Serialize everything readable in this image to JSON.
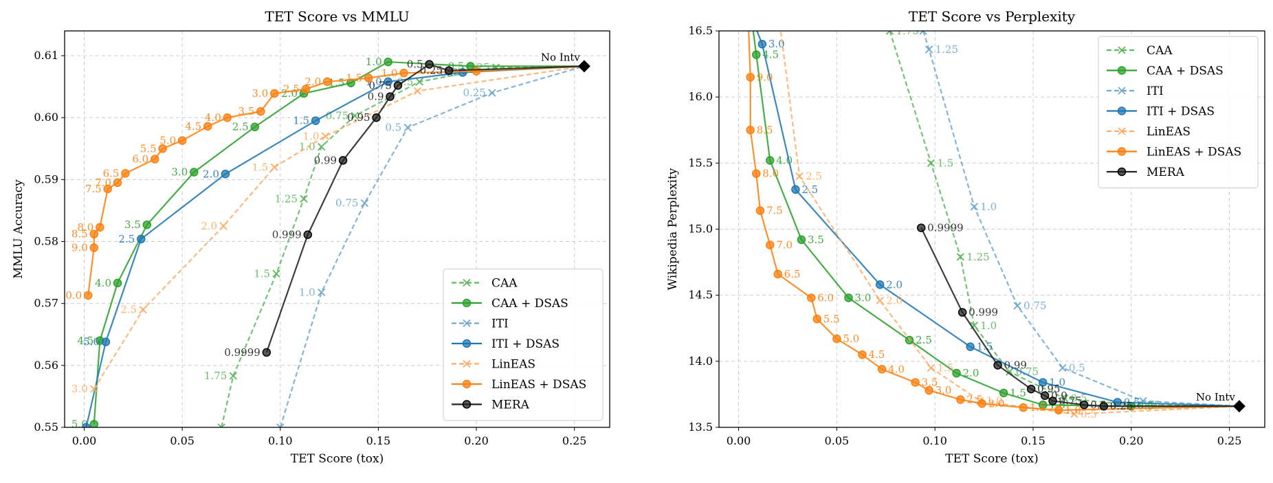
{
  "chart_data": [
    {
      "type": "line",
      "title": "TET Score vs MMLU",
      "xlabel": "TET Score (tox)",
      "ylabel": "MMLU Accuracy",
      "xlim": [
        -0.01,
        0.268
      ],
      "ylim": [
        0.55,
        0.614
      ],
      "xticks": [
        "0.00",
        "0.05",
        "0.10",
        "0.15",
        "0.20",
        "0.25"
      ],
      "xtick_values": [
        0,
        0.05,
        0.1,
        0.15,
        0.2,
        0.25
      ],
      "yticks": [
        "0.55",
        "0.56",
        "0.57",
        "0.58",
        "0.59",
        "0.60",
        "0.61"
      ],
      "ytick_values": [
        0.55,
        0.56,
        0.57,
        0.58,
        0.59,
        0.6,
        0.61
      ],
      "grid": true,
      "legend_position": "bottom-right",
      "endpoint": {
        "label": "No Intv",
        "x": 0.255,
        "y": 0.6083
      },
      "series": [
        {
          "name": "CAA",
          "color": "#5cb85c",
          "dashed": true,
          "marker": "x",
          "points": [
            {
              "x": 0.07,
              "y": 0.55,
              "l": ""
            },
            {
              "x": 0.076,
              "y": 0.5583,
              "l": "1.75"
            },
            {
              "x": 0.098,
              "y": 0.5748,
              "l": "1.5"
            },
            {
              "x": 0.112,
              "y": 0.5869,
              "l": "1.25"
            },
            {
              "x": 0.121,
              "y": 0.5953,
              "l": "1.0"
            },
            {
              "x": 0.138,
              "y": 0.6003,
              "l": "0.75"
            },
            {
              "x": 0.171,
              "y": 0.6058,
              "l": "0.5"
            },
            {
              "x": 0.21,
              "y": 0.6081,
              "l": "0.25"
            },
            {
              "x": 0.255,
              "y": 0.6083,
              "l": ""
            }
          ]
        },
        {
          "name": "CAA + DSAS",
          "color": "#2ca02c",
          "dashed": false,
          "marker": "o",
          "points": [
            {
              "x": 0.005,
              "y": 0.5505,
              "l": "5.0"
            },
            {
              "x": 0.008,
              "y": 0.564,
              "l": "4.5"
            },
            {
              "x": 0.017,
              "y": 0.5733,
              "l": "4.0"
            },
            {
              "x": 0.032,
              "y": 0.5827,
              "l": "3.5"
            },
            {
              "x": 0.056,
              "y": 0.5912,
              "l": "3.0"
            },
            {
              "x": 0.087,
              "y": 0.5985,
              "l": "2.5"
            },
            {
              "x": 0.112,
              "y": 0.6039,
              "l": "2.0"
            },
            {
              "x": 0.136,
              "y": 0.6056,
              "l": "1.5"
            },
            {
              "x": 0.155,
              "y": 0.609,
              "l": "1.0"
            },
            {
              "x": 0.197,
              "y": 0.6083,
              "l": "0.5"
            },
            {
              "x": 0.255,
              "y": 0.6083,
              "l": ""
            }
          ]
        },
        {
          "name": "ITI",
          "color": "#6fa8d0",
          "dashed": true,
          "marker": "x",
          "points": [
            {
              "x": 0.1,
              "y": 0.55,
              "l": ""
            },
            {
              "x": 0.121,
              "y": 0.5718,
              "l": "1.0"
            },
            {
              "x": 0.143,
              "y": 0.5862,
              "l": "0.75"
            },
            {
              "x": 0.165,
              "y": 0.5984,
              "l": "0.5"
            },
            {
              "x": 0.208,
              "y": 0.604,
              "l": "0.25"
            },
            {
              "x": 0.255,
              "y": 0.6083,
              "l": ""
            }
          ]
        },
        {
          "name": "ITI + DSAS",
          "color": "#1f77b4",
          "dashed": false,
          "marker": "o",
          "points": [
            {
              "x": 0.001,
              "y": 0.55,
              "l": ""
            },
            {
              "x": 0.011,
              "y": 0.5638,
              "l": "5.0"
            },
            {
              "x": 0.029,
              "y": 0.5804,
              "l": "2.5"
            },
            {
              "x": 0.072,
              "y": 0.5909,
              "l": "2.0"
            },
            {
              "x": 0.118,
              "y": 0.5995,
              "l": "1.5"
            },
            {
              "x": 0.155,
              "y": 0.6058,
              "l": "1.0"
            },
            {
              "x": 0.193,
              "y": 0.6073,
              "l": "0.5"
            },
            {
              "x": 0.255,
              "y": 0.6083,
              "l": ""
            }
          ]
        },
        {
          "name": "LinEAS",
          "color": "#ffab66",
          "dashed": true,
          "marker": "x",
          "points": [
            {
              "x": 0.005,
              "y": 0.5562,
              "l": "3.0"
            },
            {
              "x": 0.03,
              "y": 0.569,
              "l": "2.5"
            },
            {
              "x": 0.071,
              "y": 0.5825,
              "l": "2.0"
            },
            {
              "x": 0.097,
              "y": 0.592,
              "l": "1.5"
            },
            {
              "x": 0.123,
              "y": 0.597,
              "l": "1.0"
            },
            {
              "x": 0.17,
              "y": 0.6043,
              "l": ""
            },
            {
              "x": 0.255,
              "y": 0.6083,
              "l": ""
            }
          ]
        },
        {
          "name": "LinEAS + DSAS",
          "color": "#ff7f0e",
          "dashed": false,
          "marker": "o",
          "points": [
            {
              "x": 0.002,
              "y": 0.5713,
              "l": "0.0"
            },
            {
              "x": 0.005,
              "y": 0.579,
              "l": "9.0"
            },
            {
              "x": 0.005,
              "y": 0.5812,
              "l": "8.5"
            },
            {
              "x": 0.008,
              "y": 0.5823,
              "l": "8.0"
            },
            {
              "x": 0.012,
              "y": 0.5885,
              "l": "7.5"
            },
            {
              "x": 0.017,
              "y": 0.5895,
              "l": "7.0"
            },
            {
              "x": 0.021,
              "y": 0.591,
              "l": "6.5"
            },
            {
              "x": 0.036,
              "y": 0.5933,
              "l": "6.0"
            },
            {
              "x": 0.04,
              "y": 0.595,
              "l": "5.5"
            },
            {
              "x": 0.05,
              "y": 0.5963,
              "l": "5.0"
            },
            {
              "x": 0.063,
              "y": 0.5986,
              "l": "4.5"
            },
            {
              "x": 0.073,
              "y": 0.6,
              "l": "4.0"
            },
            {
              "x": 0.09,
              "y": 0.601,
              "l": "3.5"
            },
            {
              "x": 0.097,
              "y": 0.6039,
              "l": "3.0"
            },
            {
              "x": 0.113,
              "y": 0.6046,
              "l": "2.5"
            },
            {
              "x": 0.124,
              "y": 0.6058,
              "l": "2.0"
            },
            {
              "x": 0.145,
              "y": 0.6064,
              "l": "1.5"
            },
            {
              "x": 0.163,
              "y": 0.6072,
              "l": "1.0"
            },
            {
              "x": 0.2,
              "y": 0.6075,
              "l": ""
            },
            {
              "x": 0.255,
              "y": 0.6083,
              "l": ""
            }
          ]
        },
        {
          "name": "MERA",
          "color": "#222222",
          "dashed": false,
          "marker": "o",
          "points": [
            {
              "x": 0.093,
              "y": 0.5621,
              "l": "0.9999"
            },
            {
              "x": 0.114,
              "y": 0.5811,
              "l": "0.999"
            },
            {
              "x": 0.132,
              "y": 0.5931,
              "l": "0.99"
            },
            {
              "x": 0.149,
              "y": 0.6,
              "l": "0.95"
            },
            {
              "x": 0.156,
              "y": 0.6034,
              "l": "0.9"
            },
            {
              "x": 0.16,
              "y": 0.6052,
              "l": "0.75"
            },
            {
              "x": 0.176,
              "y": 0.6086,
              "l": "0.5"
            },
            {
              "x": 0.186,
              "y": 0.6076,
              "l": "0.25"
            },
            {
              "x": 0.255,
              "y": 0.6083,
              "l": ""
            }
          ]
        }
      ]
    },
    {
      "type": "line",
      "title": "TET Score vs Perplexity",
      "xlabel": "TET Score (tox)",
      "ylabel": "Wikipedia Perplexity",
      "xlim": [
        -0.01,
        0.268
      ],
      "ylim": [
        13.5,
        16.5
      ],
      "xticks": [
        "0.00",
        "0.05",
        "0.10",
        "0.15",
        "0.20",
        "0.25"
      ],
      "xtick_values": [
        0,
        0.05,
        0.1,
        0.15,
        0.2,
        0.25
      ],
      "yticks": [
        "13.5",
        "14.0",
        "14.5",
        "15.0",
        "15.5",
        "16.0",
        "16.5"
      ],
      "ytick_values": [
        13.5,
        14.0,
        14.5,
        15.0,
        15.5,
        16.0,
        16.5
      ],
      "grid": true,
      "legend_position": "top-right",
      "endpoint": {
        "label": "No Intv",
        "x": 0.255,
        "y": 13.66
      },
      "series": [
        {
          "name": "CAA",
          "color": "#5cb85c",
          "dashed": true,
          "marker": "x",
          "points": [
            {
              "x": 0.077,
              "y": 16.5,
              "l": "1.75"
            },
            {
              "x": 0.098,
              "y": 15.5,
              "l": "1.5"
            },
            {
              "x": 0.113,
              "y": 14.79,
              "l": "1.25"
            },
            {
              "x": 0.12,
              "y": 14.27,
              "l": "1.0"
            },
            {
              "x": 0.138,
              "y": 13.92,
              "l": "0.75"
            },
            {
              "x": 0.166,
              "y": 13.72,
              "l": "0.5"
            },
            {
              "x": 0.2,
              "y": 13.67,
              "l": "0.25"
            },
            {
              "x": 0.255,
              "y": 13.66,
              "l": ""
            }
          ]
        },
        {
          "name": "CAA + DSAS",
          "color": "#2ca02c",
          "dashed": false,
          "marker": "o",
          "points": [
            {
              "x": 0.007,
              "y": 16.55,
              "l": ""
            },
            {
              "x": 0.009,
              "y": 16.32,
              "l": "4.5"
            },
            {
              "x": 0.016,
              "y": 15.52,
              "l": "4.0"
            },
            {
              "x": 0.032,
              "y": 14.92,
              "l": "3.5"
            },
            {
              "x": 0.056,
              "y": 14.48,
              "l": "3.0"
            },
            {
              "x": 0.087,
              "y": 14.16,
              "l": "2.5"
            },
            {
              "x": 0.111,
              "y": 13.91,
              "l": "2.0"
            },
            {
              "x": 0.135,
              "y": 13.76,
              "l": "1.5"
            },
            {
              "x": 0.155,
              "y": 13.67,
              "l": "1.0"
            },
            {
              "x": 0.2,
              "y": 13.66,
              "l": "0.5"
            },
            {
              "x": 0.255,
              "y": 13.66,
              "l": ""
            }
          ]
        },
        {
          "name": "ITI",
          "color": "#6fa8d0",
          "dashed": true,
          "marker": "x",
          "points": [
            {
              "x": 0.094,
              "y": 16.5,
              "l": ""
            },
            {
              "x": 0.097,
              "y": 16.36,
              "l": "1.25"
            },
            {
              "x": 0.12,
              "y": 15.17,
              "l": "1.0"
            },
            {
              "x": 0.142,
              "y": 14.42,
              "l": "0.75"
            },
            {
              "x": 0.165,
              "y": 13.95,
              "l": "0.5"
            },
            {
              "x": 0.206,
              "y": 13.7,
              "l": ""
            },
            {
              "x": 0.255,
              "y": 13.66,
              "l": ""
            }
          ]
        },
        {
          "name": "ITI + DSAS",
          "color": "#1f77b4",
          "dashed": false,
          "marker": "o",
          "points": [
            {
              "x": 0.008,
              "y": 16.55,
              "l": ""
            },
            {
              "x": 0.012,
              "y": 16.4,
              "l": "3.0"
            },
            {
              "x": 0.029,
              "y": 15.3,
              "l": "2.5"
            },
            {
              "x": 0.072,
              "y": 14.58,
              "l": "2.0"
            },
            {
              "x": 0.118,
              "y": 14.11,
              "l": "1.5"
            },
            {
              "x": 0.155,
              "y": 13.84,
              "l": "1.0"
            },
            {
              "x": 0.193,
              "y": 13.69,
              "l": "0.5"
            },
            {
              "x": 0.255,
              "y": 13.66,
              "l": ""
            }
          ]
        },
        {
          "name": "LinEAS",
          "color": "#ffab66",
          "dashed": true,
          "marker": "x",
          "points": [
            {
              "x": 0.021,
              "y": 16.55,
              "l": ""
            },
            {
              "x": 0.031,
              "y": 15.4,
              "l": "2.5"
            },
            {
              "x": 0.072,
              "y": 14.46,
              "l": "2.0"
            },
            {
              "x": 0.098,
              "y": 13.95,
              "l": "1.5"
            },
            {
              "x": 0.123,
              "y": 13.7,
              "l": "1.0"
            },
            {
              "x": 0.171,
              "y": 13.6,
              "l": "0.5"
            },
            {
              "x": 0.255,
              "y": 13.66,
              "l": ""
            }
          ]
        },
        {
          "name": "LinEAS + DSAS",
          "color": "#ff7f0e",
          "dashed": false,
          "marker": "o",
          "points": [
            {
              "x": 0.005,
              "y": 16.55,
              "l": ""
            },
            {
              "x": 0.006,
              "y": 16.15,
              "l": "9.0"
            },
            {
              "x": 0.006,
              "y": 15.75,
              "l": "8.5"
            },
            {
              "x": 0.009,
              "y": 15.42,
              "l": "8.0"
            },
            {
              "x": 0.011,
              "y": 15.14,
              "l": "7.5"
            },
            {
              "x": 0.016,
              "y": 14.88,
              "l": "7.0"
            },
            {
              "x": 0.02,
              "y": 14.66,
              "l": "6.5"
            },
            {
              "x": 0.037,
              "y": 14.48,
              "l": "6.0"
            },
            {
              "x": 0.04,
              "y": 14.32,
              "l": "5.5"
            },
            {
              "x": 0.05,
              "y": 14.17,
              "l": "5.0"
            },
            {
              "x": 0.063,
              "y": 14.05,
              "l": "4.5"
            },
            {
              "x": 0.073,
              "y": 13.94,
              "l": "4.0"
            },
            {
              "x": 0.09,
              "y": 13.84,
              "l": "3.5"
            },
            {
              "x": 0.097,
              "y": 13.78,
              "l": "3.0"
            },
            {
              "x": 0.113,
              "y": 13.71,
              "l": "2.5"
            },
            {
              "x": 0.124,
              "y": 13.68,
              "l": "2.0"
            },
            {
              "x": 0.145,
              "y": 13.65,
              "l": "1.5"
            },
            {
              "x": 0.163,
              "y": 13.63,
              "l": "1.0"
            },
            {
              "x": 0.255,
              "y": 13.66,
              "l": ""
            }
          ]
        },
        {
          "name": "MERA",
          "color": "#222222",
          "dashed": false,
          "marker": "o",
          "points": [
            {
              "x": 0.093,
              "y": 15.01,
              "l": "0.9999"
            },
            {
              "x": 0.114,
              "y": 14.37,
              "l": "0.999"
            },
            {
              "x": 0.132,
              "y": 13.97,
              "l": "0.99"
            },
            {
              "x": 0.149,
              "y": 13.79,
              "l": "0.95"
            },
            {
              "x": 0.156,
              "y": 13.74,
              "l": "0.9"
            },
            {
              "x": 0.16,
              "y": 13.7,
              "l": "0.75"
            },
            {
              "x": 0.176,
              "y": 13.67,
              "l": "0.5"
            },
            {
              "x": 0.186,
              "y": 13.66,
              "l": "0.25"
            },
            {
              "x": 0.255,
              "y": 13.66,
              "l": ""
            }
          ]
        }
      ]
    }
  ]
}
